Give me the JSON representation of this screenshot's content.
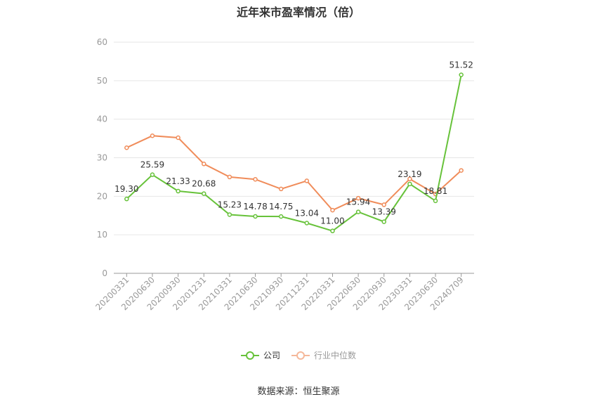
{
  "chart_data": {
    "type": "line",
    "title": "近年来市盈率情况（倍）",
    "categories": [
      "20200331",
      "20200630",
      "20200930",
      "20201231",
      "20210331",
      "20210630",
      "20210930",
      "20211231",
      "20220331",
      "20220630",
      "20220930",
      "20230331",
      "20230630",
      "20240709"
    ],
    "ylim": [
      0,
      60
    ],
    "yticks": [
      0,
      10,
      20,
      30,
      40,
      50,
      60
    ],
    "grid": true,
    "legend_position": "bottom",
    "series": [
      {
        "name": "公司",
        "color": "#67c23a",
        "values": [
          19.3,
          25.59,
          21.33,
          20.68,
          15.23,
          14.78,
          14.75,
          13.04,
          11.0,
          15.94,
          13.39,
          23.19,
          18.81,
          51.52
        ],
        "labels": [
          "19.30",
          "25.59",
          "21.33",
          "20.68",
          "15.23",
          "14.78",
          "14.75",
          "13.04",
          "11.00",
          "15.94",
          "13.39",
          "23.19",
          "18.81",
          "51.52"
        ]
      },
      {
        "name": "行业中位数",
        "color": "#f08c5a",
        "values": [
          32.6,
          35.7,
          35.2,
          28.4,
          25.0,
          24.4,
          21.9,
          24.0,
          16.4,
          19.5,
          17.8,
          24.5,
          20.6,
          26.7
        ]
      }
    ]
  },
  "source": "数据来源：恒生聚源"
}
